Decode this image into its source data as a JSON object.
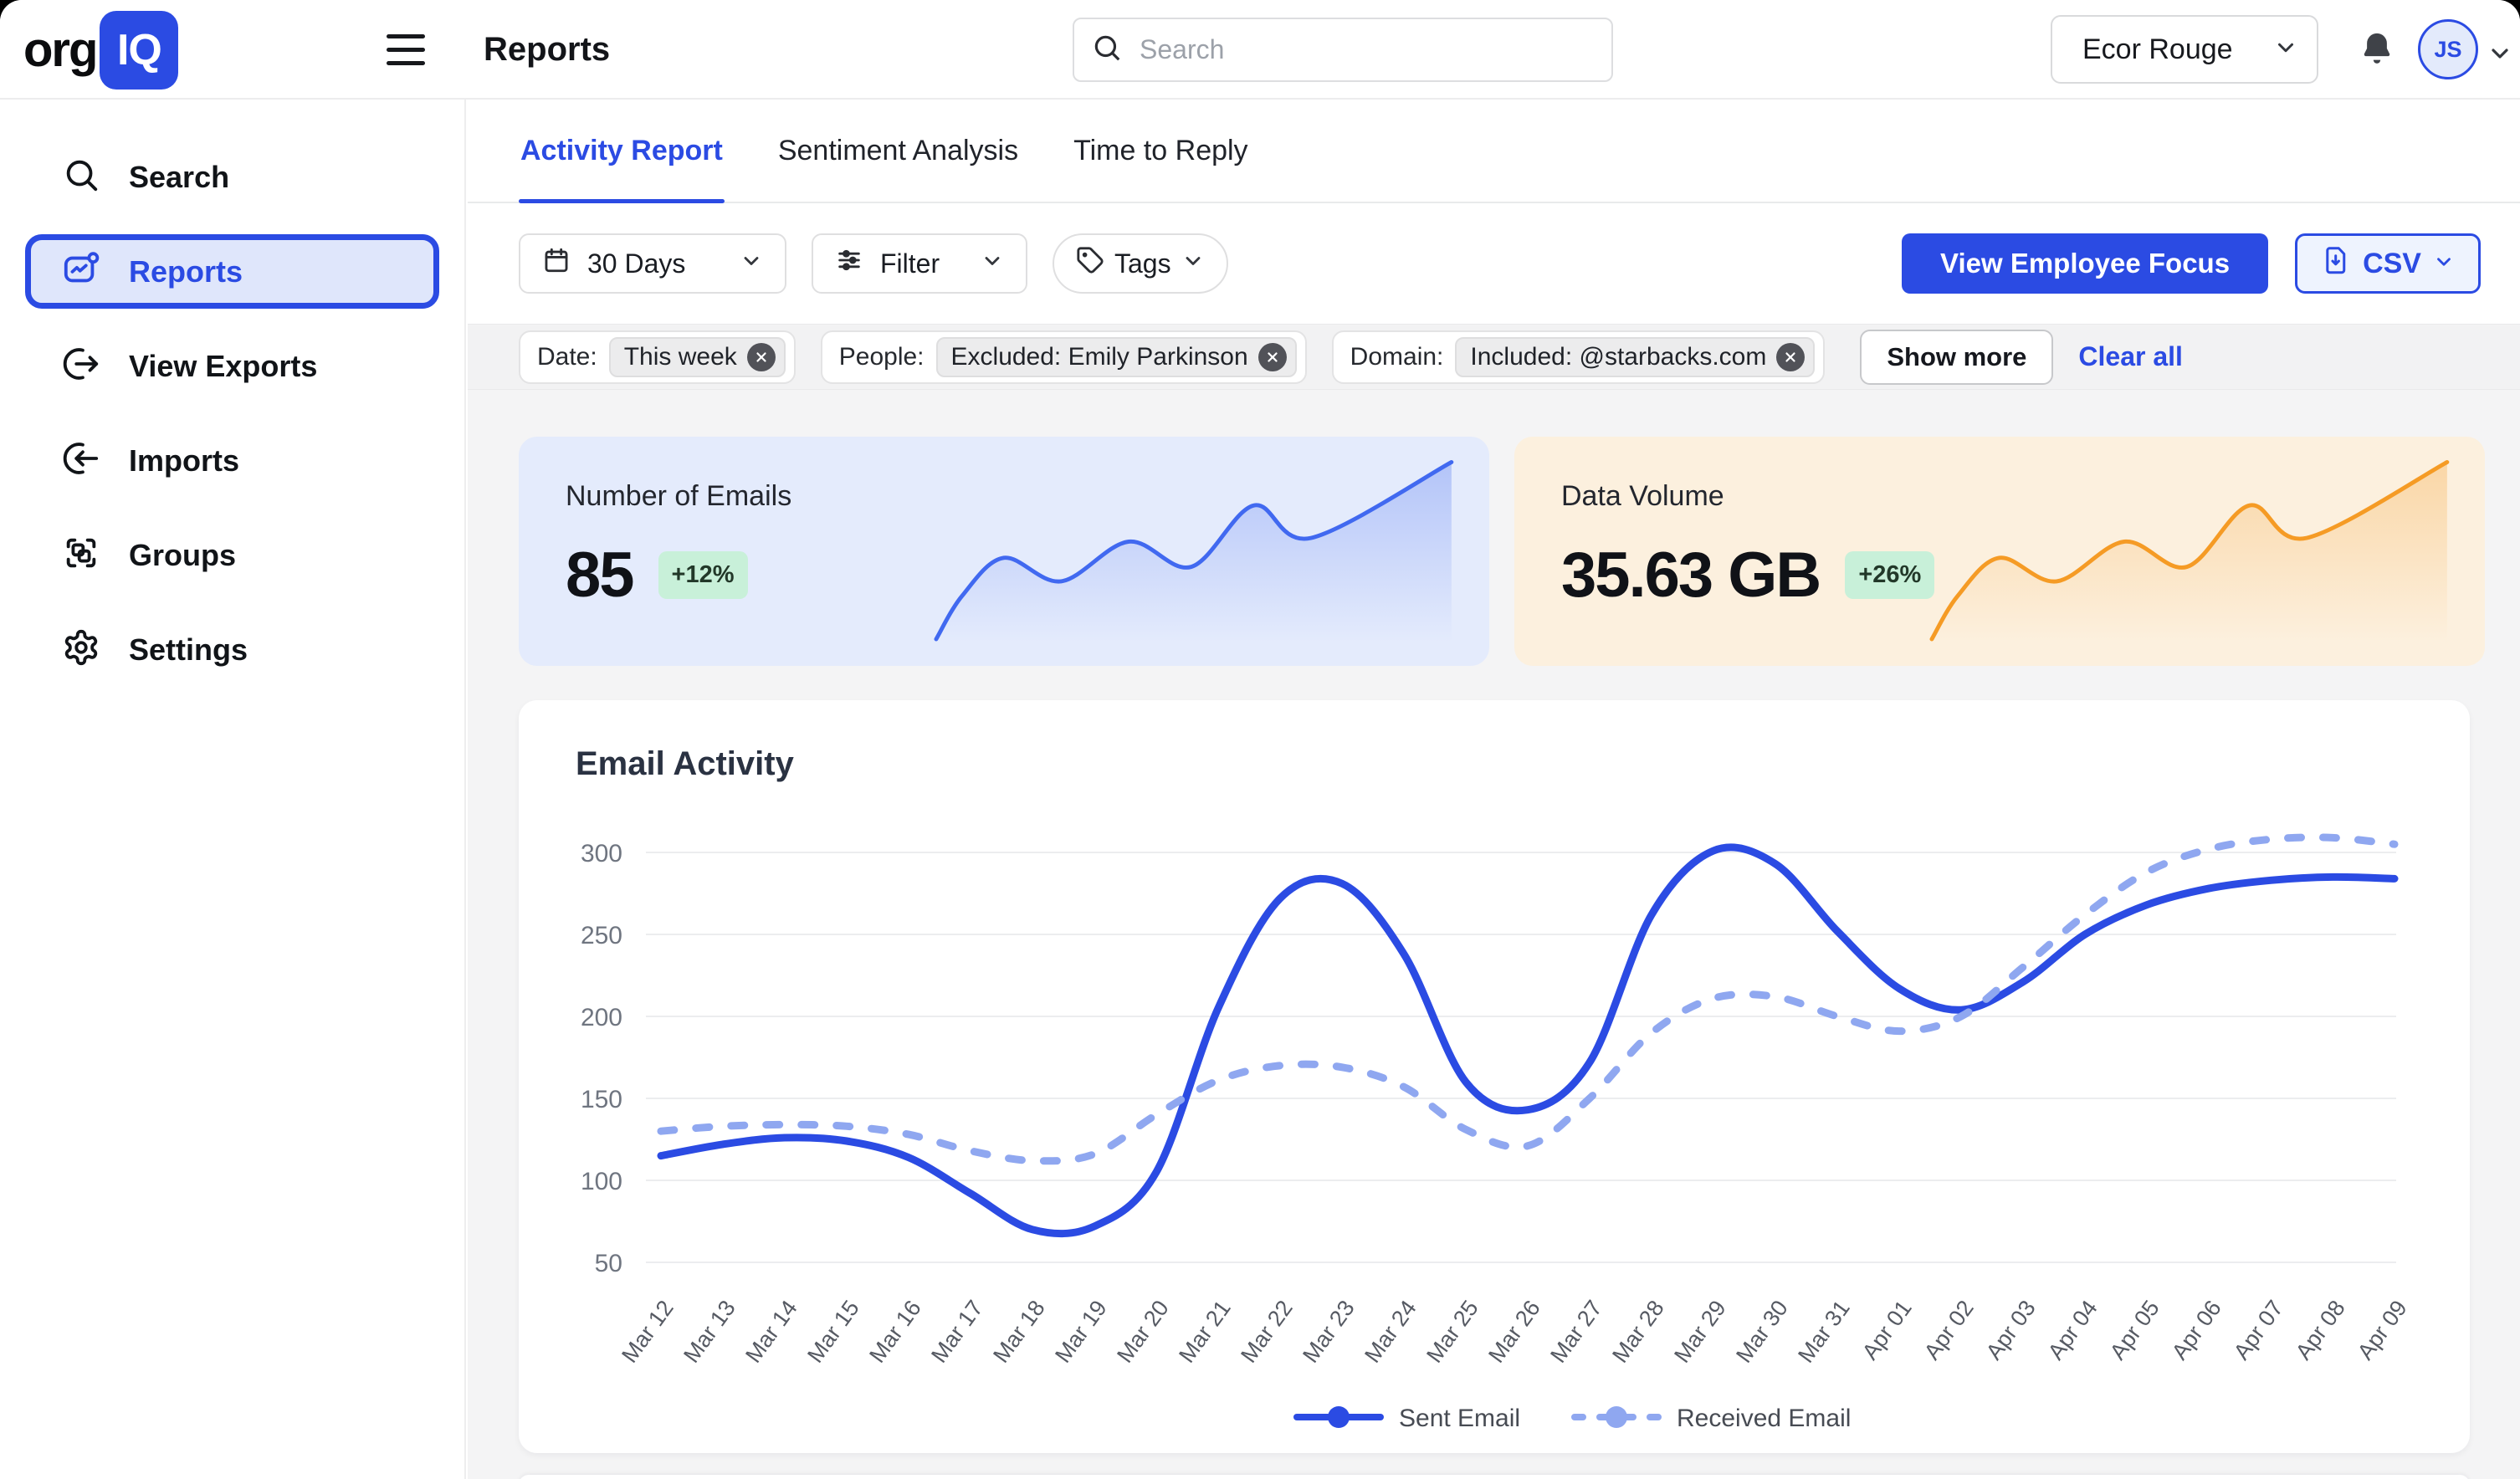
{
  "topbar": {
    "logo_text_1": "org",
    "logo_text_2": "IQ",
    "page_title": "Reports",
    "search": {
      "placeholder": "Search",
      "value": ""
    },
    "org_selector": {
      "value": "Ecor Rouge"
    },
    "avatar_initials": "JS",
    "icons": [
      "hamburger-icon",
      "search-icon",
      "chevron-down-icon",
      "bell-icon"
    ]
  },
  "sidebar": {
    "items": [
      {
        "label": "Search",
        "icon": "search-icon",
        "active": false
      },
      {
        "label": "Reports",
        "icon": "reports-icon",
        "active": true
      },
      {
        "label": "View Exports",
        "icon": "export-icon",
        "active": false
      },
      {
        "label": "Imports",
        "icon": "import-icon",
        "active": false
      },
      {
        "label": "Groups",
        "icon": "groups-icon",
        "active": false
      },
      {
        "label": "Settings",
        "icon": "gear-icon",
        "active": false
      }
    ]
  },
  "tabs": [
    {
      "label": "Activity Report",
      "active": true
    },
    {
      "label": "Sentiment Analysis",
      "active": false
    },
    {
      "label": "Time to Reply",
      "active": false
    }
  ],
  "toolbar": {
    "date_range": {
      "label": "30 Days",
      "icon": "calendar-icon"
    },
    "filter": {
      "label": "Filter",
      "icon": "sliders-icon"
    },
    "tags": {
      "label": "Tags",
      "icon": "tag-icon"
    },
    "primary_button": "View Employee Focus",
    "export_button": {
      "label": "CSV",
      "icon": "csv-file-icon"
    }
  },
  "filters": {
    "chips": [
      {
        "label": "Date:",
        "value": "This week"
      },
      {
        "label": "People:",
        "value": "Excluded: Emily Parkinson"
      },
      {
        "label": "Domain:",
        "value": "Included: @starbacks.com"
      }
    ],
    "show_more": "Show more",
    "clear_all": "Clear all"
  },
  "stats": [
    {
      "title": "Number of Emails",
      "value": "85",
      "delta": "+26%-style-badge",
      "delta_text": "+12%",
      "trend_color": "#4169F0",
      "card_bg": "#E4EBFC"
    },
    {
      "title": "Data Volume",
      "value": "35.63 GB",
      "delta": "+26%-style-badge",
      "delta_text": "+26%",
      "trend_color": "#F59B25",
      "card_bg": "#FCF0DE"
    }
  ],
  "sparkline": {
    "normalized_points": [
      [
        0,
        100
      ],
      [
        5,
        76
      ],
      [
        13,
        55
      ],
      [
        24,
        68
      ],
      [
        37,
        46
      ],
      [
        49,
        60
      ],
      [
        61,
        26
      ],
      [
        72,
        44
      ],
      [
        99,
        2
      ]
    ],
    "note": "shared rising-wave trend shape, values estimated from pixels"
  },
  "chart_data": {
    "type": "line",
    "title": "Email Activity",
    "categories": [
      "Mar 12",
      "Mar 13",
      "Mar 14",
      "Mar 15",
      "Mar 16",
      "Mar 17",
      "Mar 18",
      "Mar 19",
      "Mar 20",
      "Mar 21",
      "Mar 22",
      "Mar 23",
      "Mar 24",
      "Mar 25",
      "Mar 26",
      "Mar 27",
      "Mar 28",
      "Mar 29",
      "Mar 30",
      "Mar 31",
      "Apr 01",
      "Apr 02",
      "Apr 03",
      "Apr 04",
      "Apr 05",
      "Apr 06",
      "Apr 07",
      "Apr 08",
      "Apr 09"
    ],
    "series": [
      {
        "name": "Sent Email",
        "style": "solid",
        "color": "#2B4BE3",
        "values": [
          115,
          122,
          126,
          124,
          114,
          92,
          70,
          72,
          105,
          205,
          272,
          281,
          238,
          160,
          143,
          172,
          262,
          301,
          293,
          252,
          217,
          204,
          221,
          250,
          268,
          278,
          283,
          285,
          284
        ]
      },
      {
        "name": "Received Email",
        "style": "dashed",
        "color": "#8FA7F0",
        "values": [
          130,
          133,
          134,
          133,
          128,
          118,
          112,
          116,
          140,
          161,
          170,
          169,
          157,
          131,
          121,
          150,
          190,
          211,
          212,
          200,
          191,
          200,
          230,
          262,
          288,
          302,
          308,
          309,
          305
        ]
      }
    ],
    "ylim": [
      50,
      300
    ],
    "yticks": [
      50,
      100,
      150,
      200,
      250,
      300
    ],
    "xlabel": "",
    "ylabel": "",
    "grid": true,
    "legend_position": "bottom"
  },
  "colors": {
    "primary": "#2B4BE3",
    "primary_light": "#8FA7F0",
    "sidebar_active_bg": "#DFE6FB",
    "page_bg": "#F4F4F5",
    "band_bg": "#F2F2F3",
    "badge_bg": "#C8F0D9",
    "stat_card_blue": "#E4EBFC",
    "stat_card_orange": "#FCF0DE",
    "sparkline_blue": "#4169F0",
    "sparkline_orange": "#F59B25"
  }
}
